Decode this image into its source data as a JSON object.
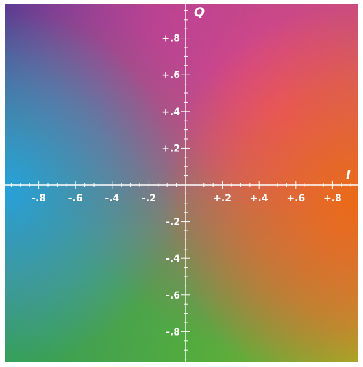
{
  "diagram": {
    "type": "color-plane",
    "axes": {
      "horizontal": {
        "name": "I",
        "range": [
          -1,
          1
        ]
      },
      "vertical": {
        "name": "Q",
        "range": [
          -1,
          1
        ]
      }
    },
    "x_tick_labels": [
      {
        "value": -0.8,
        "label": "-.8"
      },
      {
        "value": -0.6,
        "label": "-.6"
      },
      {
        "value": -0.4,
        "label": "-.4"
      },
      {
        "value": -0.2,
        "label": "-.2"
      },
      {
        "value": 0.2,
        "label": "+.2"
      },
      {
        "value": 0.4,
        "label": "+.4"
      },
      {
        "value": 0.6,
        "label": "+.6"
      },
      {
        "value": 0.8,
        "label": "+.8"
      }
    ],
    "y_tick_labels": [
      {
        "value": 0.8,
        "label": "+.8"
      },
      {
        "value": 0.6,
        "label": "+.6"
      },
      {
        "value": 0.4,
        "label": "+.4"
      },
      {
        "value": 0.2,
        "label": "+.2"
      },
      {
        "value": -0.2,
        "label": "-.2"
      },
      {
        "value": -0.4,
        "label": "-.4"
      },
      {
        "value": -0.6,
        "label": "-.6"
      },
      {
        "value": -0.8,
        "label": "-.8"
      }
    ],
    "minor_tick_step": 0.05,
    "colors": {
      "axis": "#ffffff",
      "quadrant_corners": {
        "top_left": "#5a3a98",
        "top_right": "#e0437c",
        "bottom_left": "#2aa54e",
        "bottom_right": "#97bb22"
      },
      "edge_hues": {
        "positive_i": "#ed6a15",
        "negative_i": "#2aa0de",
        "positive_q": "#9c469c",
        "negative_q": "#72b628",
        "diagonal_magenta": "#ea3d8e",
        "center_gray": "#8a7a86"
      }
    }
  }
}
